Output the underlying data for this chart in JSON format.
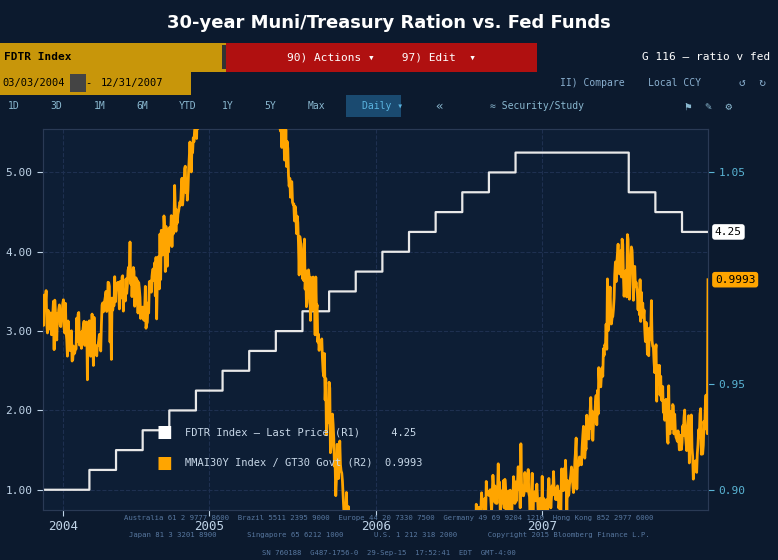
{
  "title": "30-year Muni/Treasury Ration vs. Fed Funds",
  "bg_color": "#0c1a2e",
  "plot_bg_color": "#0d1e35",
  "ffr_color": "#e8e8e8",
  "muni_color": "#ffa500",
  "grid_color": "#1e3050",
  "left_yticks": [
    1.0,
    2.0,
    3.0,
    4.0,
    5.0
  ],
  "right_yticks": [
    0.9,
    0.95,
    1.05
  ],
  "right_ytick_labels": [
    "0.90",
    "0.95",
    "1.05"
  ],
  "year_labels": [
    "2004",
    "2005",
    "2006",
    "2007"
  ],
  "last_ffr": 4.25,
  "last_muni": 0.9993,
  "footer_text1": "Australia 61 2 9777 8600  Brazil 5511 2395 9000  Europe 44 20 7330 7500  Germany 49 69 9204 1210  Hong Kong 852 2977 6000",
  "footer_text2": "Japan 81 3 3201 8900       Singapore 65 6212 1000       U.S. 1 212 318 2000       Copyright 2015 Bloomberg Finance L.P.",
  "footer_text3": "SN 760188  G487-1756-0  29-Sep-15  17:52:41  EDT  GMT-4:00"
}
